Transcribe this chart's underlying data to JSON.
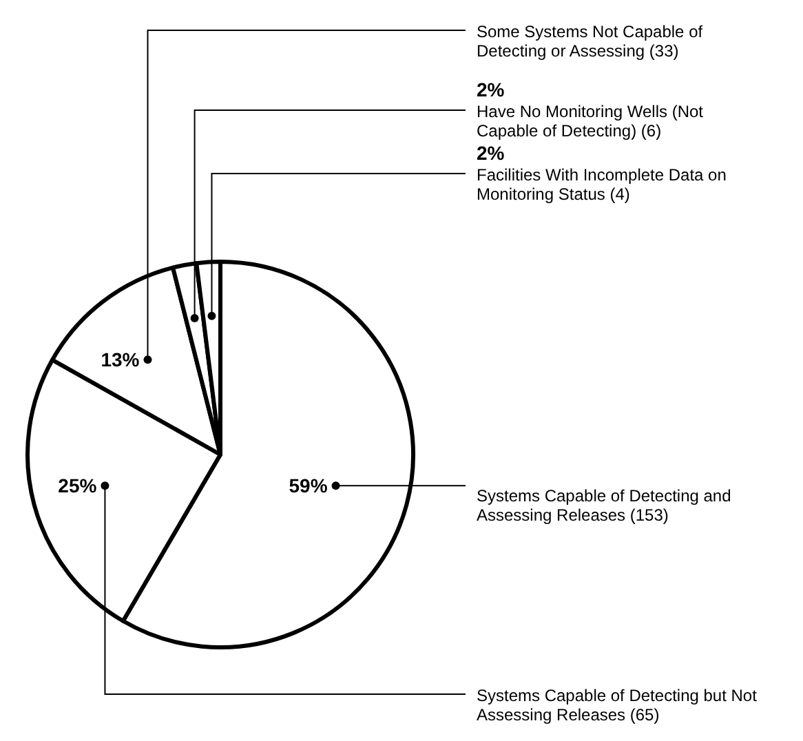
{
  "chart_data": {
    "type": "pie",
    "categories": [
      "Systems Capable of Detecting and Assessing Releases (153)",
      "Systems Capable of Detecting but Not Assessing Releases (65)",
      "Some Systems Not Capable of Detecting or Assessing (33)",
      "Have No Monitoring Wells (Not Capable of Detecting) (6)",
      "Facilities With Incomplete Data on Monitoring Status (4)"
    ],
    "values": [
      59,
      25,
      13,
      2,
      2
    ],
    "colors": [
      "#ffffff",
      "#ffffff",
      "#ffffff",
      "#ffffff",
      "#ffffff"
    ],
    "value_labels": [
      "59%",
      "25%",
      "13%",
      "2%",
      "2%"
    ]
  }
}
